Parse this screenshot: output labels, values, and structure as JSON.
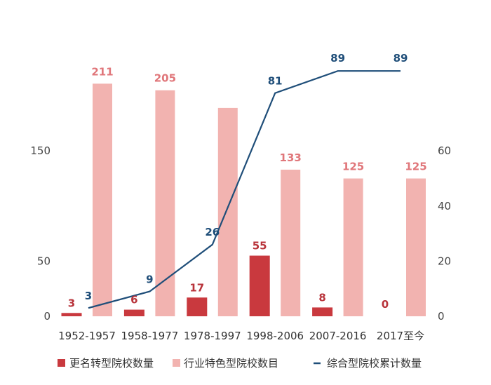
{
  "chart_data": {
    "type": "bar",
    "categories": [
      "1952-1957",
      "1958-1977",
      "1978-1997",
      "1998-2006",
      "2007-2016",
      "2017至今"
    ],
    "series": [
      {
        "name": "更名转型院校数量",
        "type": "bar",
        "axis": "left",
        "values": [
          3,
          6,
          17,
          55,
          8,
          0
        ],
        "labels": [
          "3",
          "6",
          "17",
          "55",
          "8",
          "0"
        ],
        "color": "#c9393e"
      },
      {
        "name": "行业特色型院校数目",
        "type": "bar",
        "axis": "left",
        "values": [
          211,
          205,
          189,
          133,
          125,
          125
        ],
        "labels": [
          "211",
          "205",
          "",
          "133",
          "125",
          "125"
        ],
        "color": "#f2b3b0"
      },
      {
        "name": "综合型院校累计数量",
        "type": "line",
        "axis": "right",
        "values": [
          3,
          9,
          26,
          81,
          89,
          89
        ],
        "labels": [
          "3",
          "9",
          "26",
          "81",
          "89",
          "89"
        ],
        "color": "#1f4e79"
      }
    ],
    "y_left": {
      "ticks": [
        "0",
        "50",
        "150"
      ],
      "tick_values": [
        0,
        50,
        150
      ],
      "range": [
        0,
        225
      ]
    },
    "y_right": {
      "ticks": [
        "0",
        "20",
        "40",
        "60"
      ],
      "tick_values": [
        0,
        20,
        40,
        60
      ],
      "range": [
        0,
        90
      ]
    },
    "title": "",
    "legend_position": "bottom",
    "grid": false
  }
}
